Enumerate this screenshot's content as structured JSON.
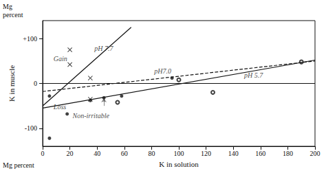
{
  "chart_data": {
    "type": "scatter",
    "color": "#111111",
    "grid": false,
    "xlabel": "K in solution",
    "ylabel": "K in muscle",
    "xlim": [
      0,
      200
    ],
    "ylim": [
      -140,
      140
    ],
    "xticks": [
      0,
      20,
      40,
      60,
      80,
      100,
      120,
      140,
      160,
      180,
      200
    ],
    "yticks": [
      -100,
      0,
      {
        "value": 100,
        "label": "+100"
      }
    ],
    "series": [
      {
        "type": "hline",
        "values": [
          0
        ]
      },
      {
        "type": "line",
        "x": [
          0,
          65
        ],
        "values": [
          -50,
          125
        ],
        "line_style": "solid"
      },
      {
        "type": "line",
        "x": [
          0,
          200
        ],
        "values": [
          -18,
          50
        ],
        "line_style": "dashed"
      },
      {
        "type": "line",
        "x": [
          0,
          200
        ],
        "values": [
          -55,
          52
        ],
        "line_style": "solid"
      },
      {
        "type": "scatter",
        "x": [
          20,
          20,
          35,
          35
        ],
        "values": [
          75,
          42,
          12,
          -35
        ],
        "marker": "x"
      },
      {
        "type": "scatter",
        "x": [
          55,
          100,
          125,
          190
        ],
        "values": [
          -42,
          8,
          -20,
          48
        ],
        "marker": "open_circle"
      },
      {
        "type": "scatter",
        "x": [
          95
        ],
        "values": [
          12
        ],
        "marker": "dot"
      },
      {
        "type": "scatter",
        "x": [
          5,
          5,
          18,
          35,
          45,
          58
        ],
        "values": [
          -28,
          -122,
          -68,
          -38,
          -32,
          -28
        ],
        "marker": "dot"
      },
      {
        "type": "arrow",
        "x": [
          45,
          45
        ],
        "values": [
          -50,
          -33
        ]
      }
    ],
    "annotations": [
      {
        "text": "pH 7.7",
        "x": 38,
        "y": 78
      },
      {
        "text": "pH7.0",
        "x": 82,
        "y": 28
      },
      {
        "text": "pH 5.7",
        "x": 148,
        "y": 18
      },
      {
        "text": "Non-irritable",
        "x": 22,
        "y": -72
      },
      {
        "text": "Gain",
        "x": 8,
        "y": 55
      },
      {
        "text": "Loss",
        "x": 8,
        "y": -52
      },
      {
        "text": "Mg\npercent"
      },
      {
        "text": "Mg percent"
      }
    ]
  }
}
